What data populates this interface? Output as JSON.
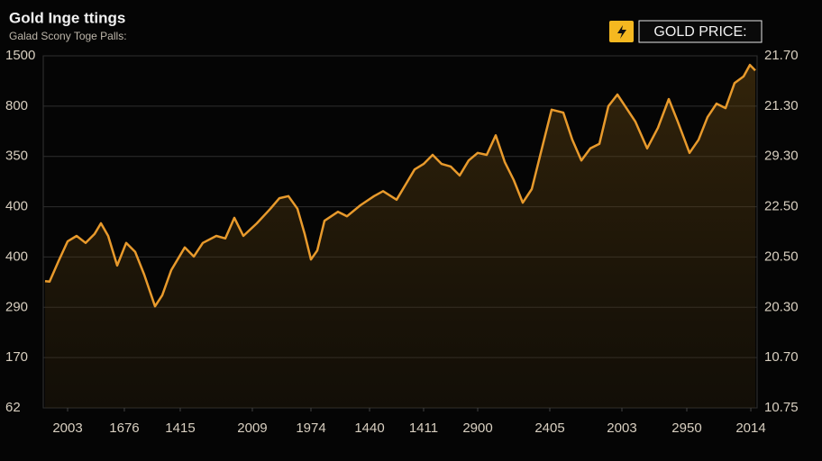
{
  "chart_data": {
    "type": "line",
    "title": "Gold Inge ttings",
    "subtitle": "Galad Scony Toge Palls:",
    "xlim": [
      0,
      100
    ],
    "xticks": [
      {
        "value": 3.41,
        "label": "2003"
      },
      {
        "value": 11.36,
        "label": "1676"
      },
      {
        "value": 19.19,
        "label": "1415"
      },
      {
        "value": 29.29,
        "label": "2009"
      },
      {
        "value": 37.5,
        "label": "1974"
      },
      {
        "value": 45.71,
        "label": "1440"
      },
      {
        "value": 53.28,
        "label": "1411"
      },
      {
        "value": 60.86,
        "label": "2900"
      },
      {
        "value": 70.96,
        "label": "2405"
      },
      {
        "value": 81.06,
        "label": "2003"
      },
      {
        "value": 90.15,
        "label": "2950"
      },
      {
        "value": 99.12,
        "label": "2014"
      }
    ],
    "ylim": [
      0,
      7
    ],
    "yticks": [
      {
        "value": 0,
        "label": "62"
      },
      {
        "value": 1,
        "label": "170"
      },
      {
        "value": 2,
        "label": "290"
      },
      {
        "value": 3,
        "label": "400"
      },
      {
        "value": 4,
        "label": "400"
      },
      {
        "value": 5,
        "label": "350"
      },
      {
        "value": 6,
        "label": "800"
      },
      {
        "value": 7,
        "label": "1500"
      }
    ],
    "y2lim": [
      0,
      7
    ],
    "y2ticks": [
      {
        "value": 0,
        "label": "10.75"
      },
      {
        "value": 1,
        "label": "10.70"
      },
      {
        "value": 2,
        "label": "20.30"
      },
      {
        "value": 3,
        "label": "20.50"
      },
      {
        "value": 4,
        "label": "22.50"
      },
      {
        "value": 5,
        "label": "29.30"
      },
      {
        "value": 6,
        "label": "21.30"
      },
      {
        "value": 7,
        "label": "21.70"
      }
    ],
    "grid": true,
    "legend": "top-right",
    "x": [
      0.25,
      0.88,
      2.15,
      3.41,
      4.67,
      5.93,
      7.2,
      8.08,
      9.09,
      10.35,
      11.62,
      12.88,
      14.14,
      15.66,
      16.67,
      17.93,
      19.82,
      21.09,
      22.35,
      24.24,
      25.51,
      26.77,
      28.03,
      29.92,
      31.82,
      33.08,
      34.34,
      35.61,
      36.62,
      37.5,
      38.38,
      39.39,
      41.29,
      42.55,
      44.44,
      46.34,
      47.6,
      49.49,
      50.76,
      52.02,
      53.28,
      54.55,
      55.81,
      57.07,
      58.33,
      59.6,
      60.86,
      62.12,
      63.38,
      64.65,
      65.91,
      67.17,
      68.43,
      69.7,
      71.21,
      72.85,
      74.12,
      75.38,
      76.64,
      77.9,
      79.17,
      80.43,
      81.69,
      82.95,
      84.6,
      86.11,
      87.63,
      88.89,
      90.53,
      91.79,
      93.06,
      94.32,
      95.58,
      96.84,
      98.11,
      98.99,
      99.75
    ],
    "series": [
      {
        "name": "GOLD PRICE:",
        "color": "#e89a2c",
        "values": [
          2.52,
          2.51,
          2.92,
          3.31,
          3.42,
          3.28,
          3.46,
          3.67,
          3.42,
          2.83,
          3.28,
          3.1,
          2.65,
          2.02,
          2.24,
          2.74,
          3.19,
          3.01,
          3.28,
          3.42,
          3.37,
          3.78,
          3.42,
          3.67,
          3.96,
          4.17,
          4.21,
          3.96,
          3.46,
          2.95,
          3.13,
          3.72,
          3.9,
          3.81,
          4.03,
          4.21,
          4.31,
          4.14,
          4.44,
          4.74,
          4.85,
          5.03,
          4.85,
          4.8,
          4.62,
          4.92,
          5.07,
          5.03,
          5.42,
          4.89,
          4.53,
          4.08,
          4.35,
          5.07,
          5.93,
          5.87,
          5.33,
          4.92,
          5.16,
          5.25,
          6.0,
          6.23,
          5.96,
          5.69,
          5.16,
          5.57,
          6.14,
          5.69,
          5.07,
          5.33,
          5.78,
          6.05,
          5.96,
          6.46,
          6.59,
          6.82,
          6.71
        ]
      }
    ]
  }
}
